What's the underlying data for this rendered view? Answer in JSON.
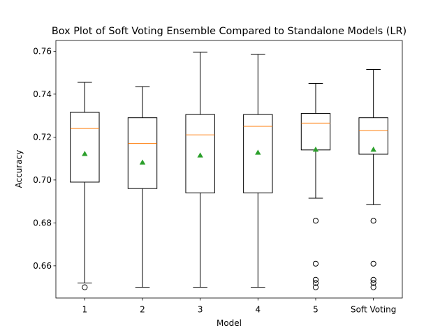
{
  "chart_data": {
    "type": "box",
    "title": "Box Plot of Soft Voting Ensemble Compared to Standalone Models (LR)",
    "xlabel": "Model",
    "ylabel": "Accuracy",
    "ylim": [
      0.645,
      0.765
    ],
    "yticks": [
      "0.66",
      "0.68",
      "0.70",
      "0.72",
      "0.74",
      "0.76"
    ],
    "ytick_values": [
      0.66,
      0.68,
      0.7,
      0.72,
      0.74,
      0.76
    ],
    "categories": [
      "1",
      "2",
      "3",
      "4",
      "5",
      "Soft Voting"
    ],
    "boxes": [
      {
        "whisker_low": 0.652,
        "q1": 0.699,
        "median": 0.724,
        "q3": 0.7315,
        "whisker_high": 0.7455,
        "mean": 0.7122,
        "outliers": [
          0.65
        ]
      },
      {
        "whisker_low": 0.65,
        "q1": 0.696,
        "median": 0.717,
        "q3": 0.729,
        "whisker_high": 0.7435,
        "mean": 0.7082,
        "outliers": []
      },
      {
        "whisker_low": 0.65,
        "q1": 0.694,
        "median": 0.721,
        "q3": 0.7305,
        "whisker_high": 0.7595,
        "mean": 0.7115,
        "outliers": []
      },
      {
        "whisker_low": 0.65,
        "q1": 0.694,
        "median": 0.725,
        "q3": 0.7305,
        "whisker_high": 0.7585,
        "mean": 0.7128,
        "outliers": []
      },
      {
        "whisker_low": 0.6915,
        "q1": 0.714,
        "median": 0.7265,
        "q3": 0.731,
        "whisker_high": 0.745,
        "mean": 0.7142,
        "outliers": [
          0.681,
          0.661,
          0.6535,
          0.652,
          0.65
        ]
      },
      {
        "whisker_low": 0.6885,
        "q1": 0.712,
        "median": 0.723,
        "q3": 0.729,
        "whisker_high": 0.7515,
        "mean": 0.7142,
        "outliers": [
          0.681,
          0.661,
          0.6535,
          0.652,
          0.65
        ]
      }
    ],
    "colors": {
      "box": "#000000",
      "median": "#ff7f0e",
      "mean": "#2ca02c",
      "outlier": "#000000"
    },
    "grid": false
  }
}
